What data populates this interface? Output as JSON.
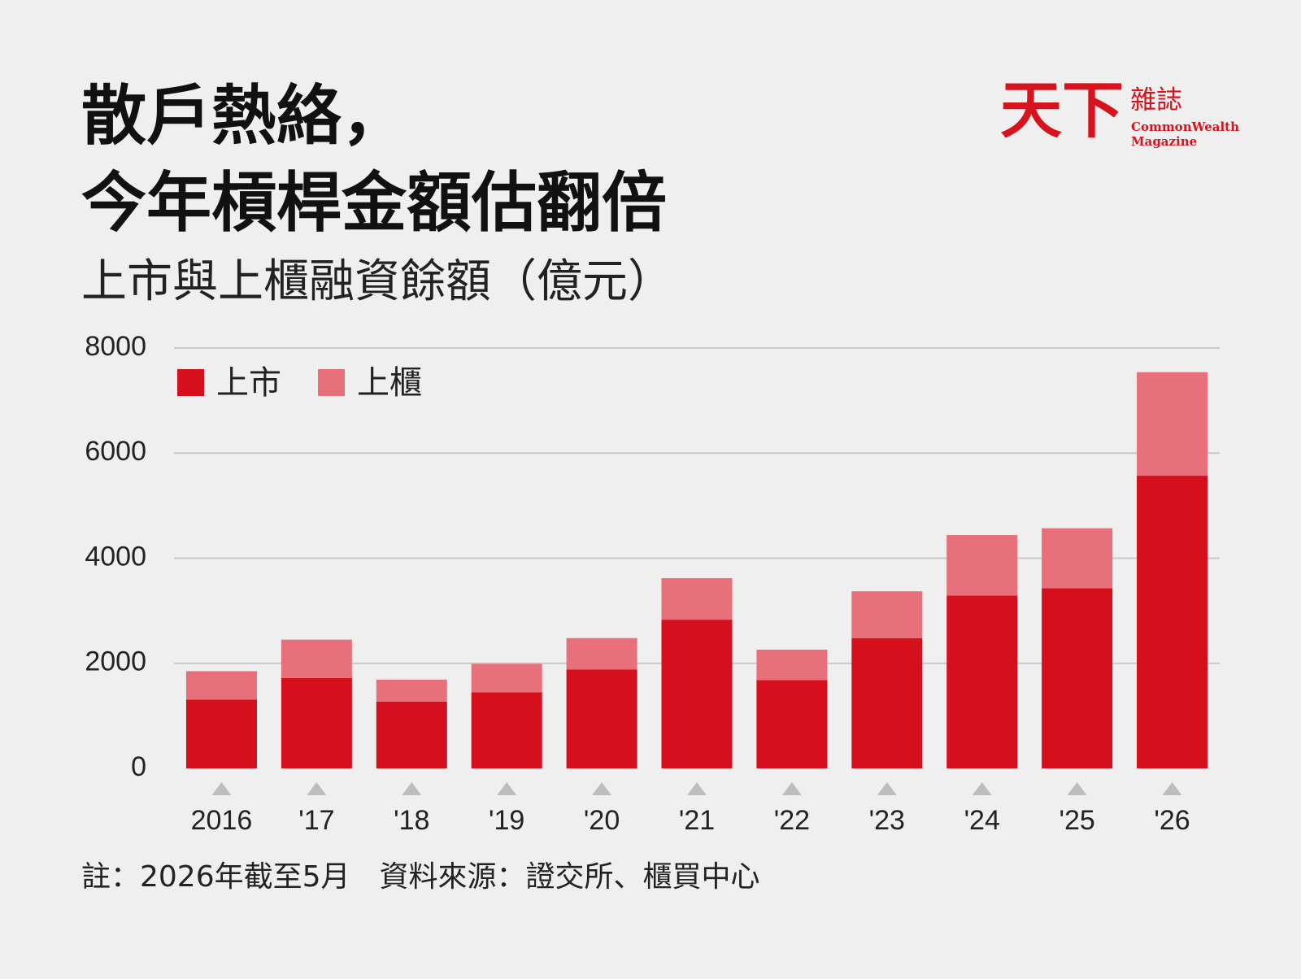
{
  "chart_data": {
    "type": "bar",
    "stacked": true,
    "title": [
      "散戶熱絡，",
      "今年槓桿金額估翻倍"
    ],
    "subtitle": "上市與上櫃融資餘額（億元）",
    "categories": [
      "2016",
      "'17",
      "'18",
      "'19",
      "'20",
      "'21",
      "'22",
      "'23",
      "'24",
      "'25",
      "'26"
    ],
    "series": [
      {
        "name": "上市",
        "color": "#d50f1c",
        "values": [
          1310,
          1720,
          1270,
          1450,
          1880,
          2830,
          1680,
          2480,
          3290,
          3430,
          5570
        ]
      },
      {
        "name": "上櫃",
        "color": "#e8707a",
        "values": [
          540,
          730,
          420,
          540,
          600,
          790,
          580,
          890,
          1150,
          1140,
          1970
        ]
      }
    ],
    "ylim": [
      0,
      8000
    ],
    "yticks": [
      0,
      2000,
      4000,
      6000,
      8000
    ],
    "grid": true,
    "note": "註：2026年截至5月　資料來源：證交所、櫃買中心"
  },
  "logo": {
    "name": "天下",
    "sub": "雜誌",
    "english": [
      "CommonWealth",
      "Magazine"
    ]
  }
}
